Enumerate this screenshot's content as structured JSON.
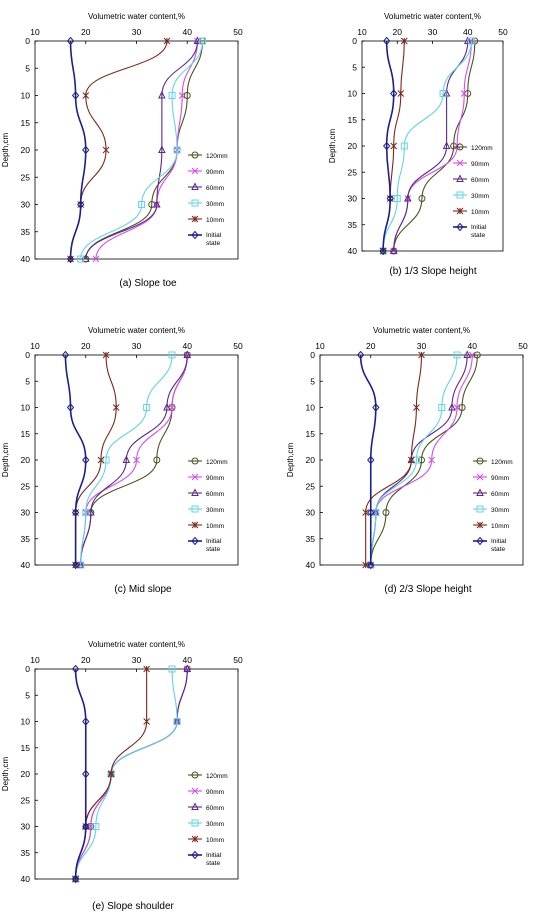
{
  "colors": {
    "120mm": "#4b5320",
    "90mm": "#d24fe6",
    "60mm": "#5a2a8a",
    "30mm": "#63d3e8",
    "10mm": "#7a2a1a",
    "initial": "#1c1f8c"
  },
  "chart_data": [
    {
      "type": "line",
      "panel_caption": "(a) Slope toe",
      "xlabel": "Volumetric water content,%",
      "ylabel": "Depth,cm",
      "xlim": [
        10,
        50
      ],
      "ylim": [
        0,
        40
      ],
      "x_ticks": [
        10,
        20,
        30,
        40,
        50
      ],
      "y_ticks": [
        0,
        5,
        10,
        15,
        20,
        25,
        30,
        35,
        40
      ],
      "depths": [
        0,
        10,
        20,
        30,
        40
      ],
      "legend_labels": [
        "120mm",
        "90mm",
        "60mm",
        "30mm",
        "10mm",
        "Initial state"
      ],
      "series": [
        {
          "name": "120mm",
          "marker": "circle",
          "values": [
            43,
            40,
            38,
            33,
            20
          ]
        },
        {
          "name": "90mm",
          "marker": "x",
          "values": [
            42,
            39,
            38,
            34,
            22
          ]
        },
        {
          "name": "60mm",
          "marker": "triangle",
          "values": [
            42,
            35,
            35,
            34,
            20
          ]
        },
        {
          "name": "30mm",
          "marker": "square",
          "values": [
            43,
            37,
            38,
            31,
            19
          ]
        },
        {
          "name": "10mm",
          "marker": "star",
          "values": [
            36,
            20,
            24,
            19,
            17
          ]
        },
        {
          "name": "Initial state",
          "marker": "diamond",
          "values": [
            17,
            18,
            20,
            19,
            17
          ]
        }
      ]
    },
    {
      "type": "line",
      "panel_caption": "(b) 1/3 Slope height",
      "xlabel": "Volumetric water content,%",
      "ylabel": "Depth,cm",
      "xlim": [
        10,
        50
      ],
      "ylim": [
        0,
        40
      ],
      "x_ticks": [
        10,
        20,
        30,
        40,
        50
      ],
      "y_ticks": [
        0,
        5,
        10,
        15,
        20,
        25,
        30,
        35,
        40
      ],
      "depths": [
        0,
        10,
        20,
        30,
        40
      ],
      "legend_labels": [
        "120mm",
        "90mm",
        "60mm",
        "30mm",
        "10mm",
        "Initial state"
      ],
      "series": [
        {
          "name": "120mm",
          "marker": "circle",
          "values": [
            42,
            40,
            36,
            27,
            19
          ]
        },
        {
          "name": "90mm",
          "marker": "x",
          "values": [
            41,
            39,
            37,
            23,
            19
          ]
        },
        {
          "name": "60mm",
          "marker": "triangle",
          "values": [
            40,
            34,
            34,
            23,
            19
          ]
        },
        {
          "name": "30mm",
          "marker": "square",
          "values": [
            41,
            33,
            22,
            20,
            16
          ]
        },
        {
          "name": "10mm",
          "marker": "star",
          "values": [
            22,
            21,
            19,
            18,
            16
          ]
        },
        {
          "name": "Initial state",
          "marker": "diamond",
          "values": [
            17,
            19,
            17,
            18,
            16
          ]
        }
      ]
    },
    {
      "type": "line",
      "panel_caption": "(c) Mid slope",
      "xlabel": "Volumetric water content,%",
      "ylabel": "Depth,cm",
      "xlim": [
        10,
        50
      ],
      "ylim": [
        0,
        40
      ],
      "x_ticks": [
        10,
        20,
        30,
        40,
        50
      ],
      "y_ticks": [
        0,
        5,
        10,
        15,
        20,
        25,
        30,
        35,
        40
      ],
      "depths": [
        0,
        10,
        20,
        30,
        40
      ],
      "legend_labels": [
        "120mm",
        "90mm",
        "60mm",
        "30mm",
        "10mm",
        "Initial state"
      ],
      "series": [
        {
          "name": "120mm",
          "marker": "circle",
          "values": [
            40,
            37,
            34,
            21,
            19
          ]
        },
        {
          "name": "90mm",
          "marker": "x",
          "values": [
            40,
            37,
            30,
            20,
            19
          ]
        },
        {
          "name": "60mm",
          "marker": "triangle",
          "values": [
            40,
            36,
            28,
            21,
            19
          ]
        },
        {
          "name": "30mm",
          "marker": "square",
          "values": [
            37,
            32,
            24,
            20,
            19
          ]
        },
        {
          "name": "10mm",
          "marker": "star",
          "values": [
            24,
            26,
            23,
            18,
            18
          ]
        },
        {
          "name": "Initial state",
          "marker": "diamond",
          "values": [
            16,
            17,
            20,
            18,
            18
          ]
        }
      ]
    },
    {
      "type": "line",
      "panel_caption": "(d) 2/3 Slope height",
      "xlabel": "Volumetric water content,%",
      "ylabel": "Depth,cm",
      "xlim": [
        10,
        50
      ],
      "ylim": [
        0,
        40
      ],
      "x_ticks": [
        10,
        20,
        30,
        40,
        50
      ],
      "y_ticks": [
        0,
        5,
        10,
        15,
        20,
        25,
        30,
        35,
        40
      ],
      "depths": [
        0,
        10,
        20,
        30,
        40
      ],
      "legend_labels": [
        "120mm",
        "90mm",
        "60mm",
        "30mm",
        "10mm",
        "Initial state"
      ],
      "series": [
        {
          "name": "120mm",
          "marker": "circle",
          "values": [
            41,
            38,
            30,
            23,
            20
          ]
        },
        {
          "name": "90mm",
          "marker": "x",
          "values": [
            40,
            37,
            32,
            21,
            20
          ]
        },
        {
          "name": "60mm",
          "marker": "triangle",
          "values": [
            39,
            36,
            28,
            21,
            20
          ]
        },
        {
          "name": "30mm",
          "marker": "square",
          "values": [
            37,
            34,
            29,
            21,
            20
          ]
        },
        {
          "name": "10mm",
          "marker": "star",
          "values": [
            30,
            29,
            28,
            19,
            19
          ]
        },
        {
          "name": "Initial state",
          "marker": "diamond",
          "values": [
            18,
            21,
            20,
            20,
            20
          ]
        }
      ]
    },
    {
      "type": "line",
      "panel_caption": "(e) Slope shoulder",
      "xlabel": "Volumetric water content,%",
      "ylabel": "Depth,cm",
      "xlim": [
        10,
        50
      ],
      "ylim": [
        0,
        40
      ],
      "x_ticks": [
        10,
        20,
        30,
        40,
        50
      ],
      "y_ticks": [
        0,
        5,
        10,
        15,
        20,
        25,
        30,
        35,
        40
      ],
      "depths": [
        0,
        10,
        20,
        30,
        40
      ],
      "legend_labels": [
        "120mm",
        "90mm",
        "60mm",
        "30mm",
        "10mm",
        "Initial state"
      ],
      "series": [
        {
          "name": "120mm",
          "marker": "circle",
          "values": [
            40,
            38,
            25,
            21,
            18
          ]
        },
        {
          "name": "90mm",
          "marker": "x",
          "values": [
            40,
            38,
            25,
            21,
            18
          ]
        },
        {
          "name": "60mm",
          "marker": "triangle",
          "values": [
            40,
            38,
            25,
            20,
            18
          ]
        },
        {
          "name": "30mm",
          "marker": "square",
          "values": [
            37,
            38,
            25,
            22,
            18
          ]
        },
        {
          "name": "10mm",
          "marker": "star",
          "values": [
            32,
            32,
            25,
            20,
            18
          ]
        },
        {
          "name": "Initial state",
          "marker": "diamond",
          "values": [
            18,
            20,
            20,
            20,
            18
          ]
        }
      ]
    }
  ]
}
